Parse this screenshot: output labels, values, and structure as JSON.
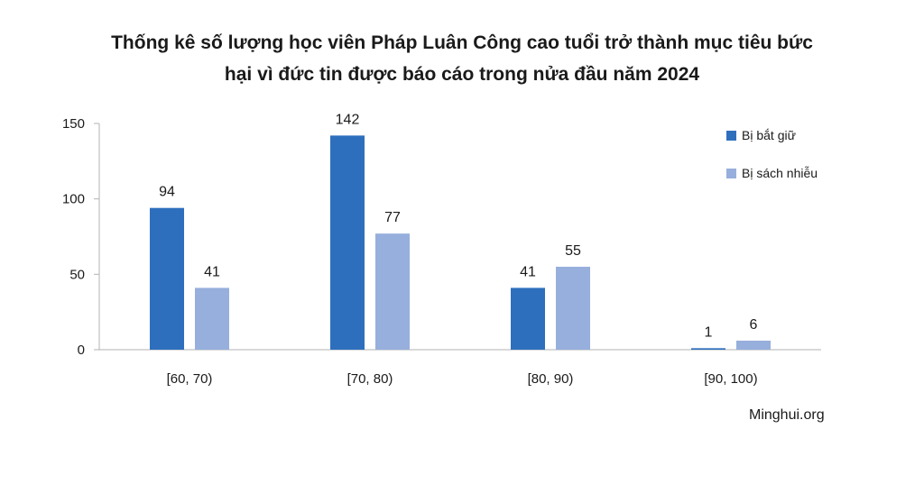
{
  "chart_data": {
    "type": "bar",
    "title_lines": [
      "Thống kê số lượng học viên Pháp Luân Công cao tuổi trở thành mục tiêu bức",
      "hại vì đức tin được báo cáo trong nửa đầu năm 2024"
    ],
    "categories": [
      "[60, 70)",
      "[70, 80)",
      "[80, 90)",
      "[90, 100)"
    ],
    "series": [
      {
        "name": "Bị bắt giữ",
        "values": [
          94,
          142,
          41,
          1
        ],
        "color": "#2e6fbd"
      },
      {
        "name": "Bị sách nhiễu",
        "values": [
          41,
          77,
          55,
          6
        ],
        "color": "#97afdc"
      }
    ],
    "ylim": [
      0,
      150
    ],
    "yticks": [
      0,
      50,
      100,
      150
    ],
    "xlabel": "",
    "ylabel": "",
    "grid": false,
    "legend_position": "top-right",
    "data_labels": true
  },
  "source": "Minghui.org",
  "colors": {
    "axis": "#b3b3b3",
    "text": "#1a1a1a"
  }
}
